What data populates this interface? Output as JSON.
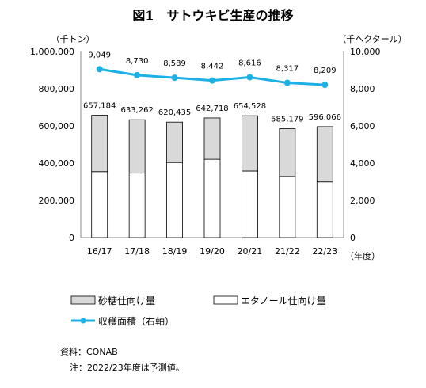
{
  "chart_data": {
    "type": "bar",
    "title": "図1　サトウキビ生産の推移",
    "categories": [
      "16/17",
      "17/18",
      "18/19",
      "19/20",
      "20/21",
      "21/22",
      "22/23"
    ],
    "x_unit": "（年度）",
    "y_left_unit": "（千トン）",
    "y_right_unit": "（千ヘクタール）",
    "y_left_ticks": [
      "1,000,000",
      "800,000",
      "600,000",
      "400,000",
      "200,000",
      "0"
    ],
    "y_right_ticks": [
      "10,000",
      "8,000",
      "6,000",
      "4,000",
      "2,000",
      "0"
    ],
    "ylim_left": [
      0,
      1000000
    ],
    "ylim_right": [
      0,
      10000
    ],
    "grid": false,
    "legend_position": "bottom",
    "series": [
      {
        "name": "砂糖仕向け量",
        "kind": "stacked-bar",
        "color": "#d9d9d9",
        "values": [
          303000,
          287000,
          217000,
          222000,
          297000,
          257000,
          297000
        ]
      },
      {
        "name": "エタノール仕向け量",
        "kind": "stacked-bar",
        "color": "#ffffff",
        "values": [
          354184,
          346262,
          403435,
          420718,
          357528,
          328179,
          299066
        ]
      },
      {
        "name": "収穫面積（右軸）",
        "kind": "line",
        "axis": "right",
        "color": "#1cb0e6",
        "values": [
          9049,
          8730,
          8589,
          8442,
          8616,
          8317,
          8209
        ]
      }
    ],
    "bar_total_labels": [
      "657,184",
      "633,262",
      "620,435",
      "642,718",
      "654,528",
      "585,179",
      "596,066"
    ],
    "line_labels": [
      "9,049",
      "8,730",
      "8,589",
      "8,442",
      "8,616",
      "8,317",
      "8,209"
    ]
  },
  "notes": {
    "source": "資料：CONAB",
    "note": "注：2022/23年度は予測値。"
  }
}
